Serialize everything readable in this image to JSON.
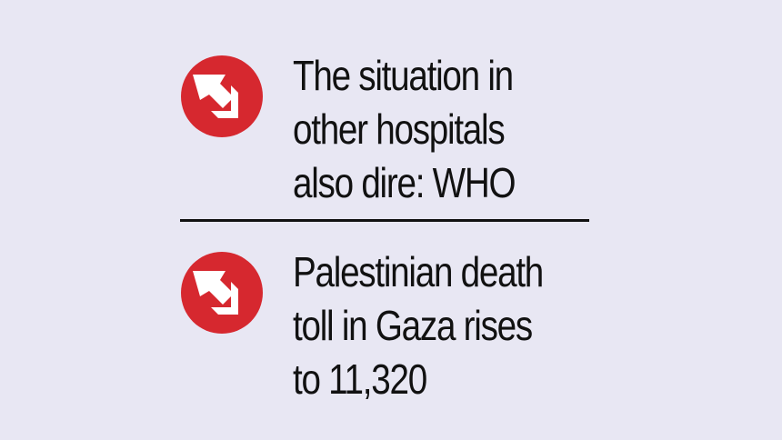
{
  "headlines": [
    {
      "text": "The situation in\nother hospitals\nalso dire: WHO",
      "icon": "arrow-up-left-icon"
    },
    {
      "text": "Palestinian death\ntoll in Gaza rises\nto 11,320",
      "icon": "arrow-up-left-icon"
    }
  ],
  "colors": {
    "background": "#e8e7f3",
    "accent": "#d6282f",
    "text": "#111111"
  }
}
